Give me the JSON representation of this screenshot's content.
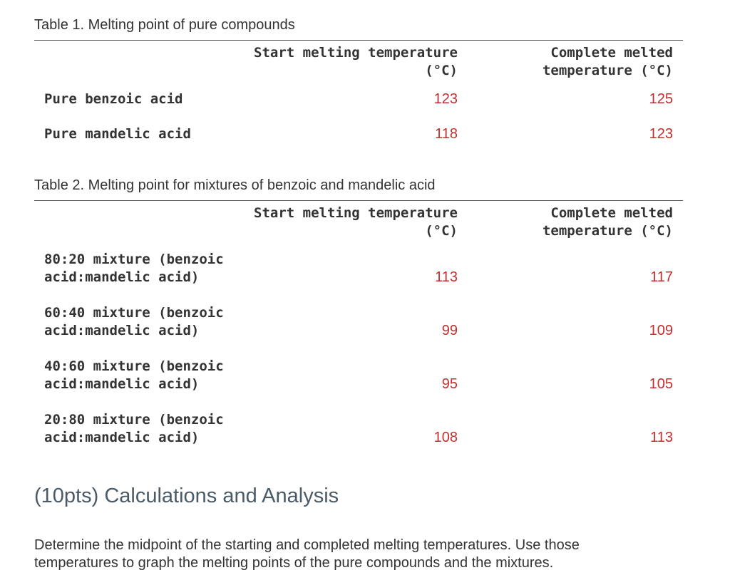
{
  "table1": {
    "caption": "Table 1. Melting point of pure compounds",
    "headers": {
      "start": "Start melting temperature\n(°C)",
      "complete": "Complete melted\ntemperature (°C)"
    },
    "rows": [
      {
        "label": "Pure benzoic acid",
        "start": "123",
        "complete": "125"
      },
      {
        "label": "Pure mandelic acid",
        "start": "118",
        "complete": "123"
      }
    ]
  },
  "table2": {
    "caption": "Table 2. Melting point for mixtures of benzoic and mandelic acid",
    "headers": {
      "start": "Start melting temperature\n(°C)",
      "complete": "Complete melted\ntemperature (°C)"
    },
    "rows": [
      {
        "label": "80:20 mixture (benzoic\nacid:mandelic acid)",
        "start": "113",
        "complete": "117"
      },
      {
        "label": "60:40 mixture (benzoic\nacid:mandelic acid)",
        "start": "99",
        "complete": "109"
      },
      {
        "label": "40:60 mixture (benzoic\nacid:mandelic acid)",
        "start": "95",
        "complete": "105"
      },
      {
        "label": "20:80 mixture (benzoic\nacid:mandelic acid)",
        "start": "108",
        "complete": "113"
      }
    ]
  },
  "section": {
    "heading": "(10pts) Calculations and Analysis",
    "paragraph": "Determine the midpoint of the starting and completed melting temperatures. Use those temperatures to graph the melting points of the pure compounds and the mixtures."
  },
  "colors": {
    "value_red": "#c62d2d",
    "heading_slate": "#4a5a66"
  }
}
